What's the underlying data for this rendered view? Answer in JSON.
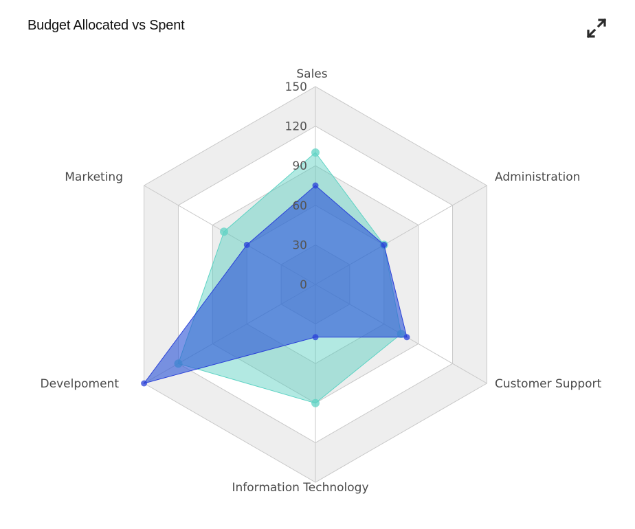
{
  "header": {
    "title": "Budget Allocated vs Spent",
    "expand_icon": "expand-arrows-icon"
  },
  "colors": {
    "band_gray": "#eeeeee",
    "band_white": "#ffffff",
    "grid_line": "#c8c8c8",
    "series_allocated_fill": "rgba(72,202,185,0.42)",
    "series_allocated_stroke": "#5ed3c4",
    "series_spent_fill": "rgba(45,85,215,0.62)",
    "series_spent_stroke": "#2a40d8"
  },
  "chart_data": {
    "type": "radar",
    "title": "Budget Allocated vs Spent",
    "categories": [
      "Sales",
      "Administration",
      "Customer Support",
      "Information Technology",
      "Develpoment",
      "Marketing"
    ],
    "radial_ticks": [
      0,
      30,
      60,
      90,
      120,
      150
    ],
    "range": [
      0,
      150
    ],
    "series": [
      {
        "name": "Allocated",
        "color": "#5ed3c4",
        "values": [
          100,
          60,
          75,
          90,
          120,
          80
        ]
      },
      {
        "name": "Spent",
        "color": "#2a40d8",
        "values": [
          75,
          60,
          80,
          40,
          150,
          60
        ]
      }
    ],
    "legend": "none",
    "grid": "alternating hexagonal bands"
  }
}
